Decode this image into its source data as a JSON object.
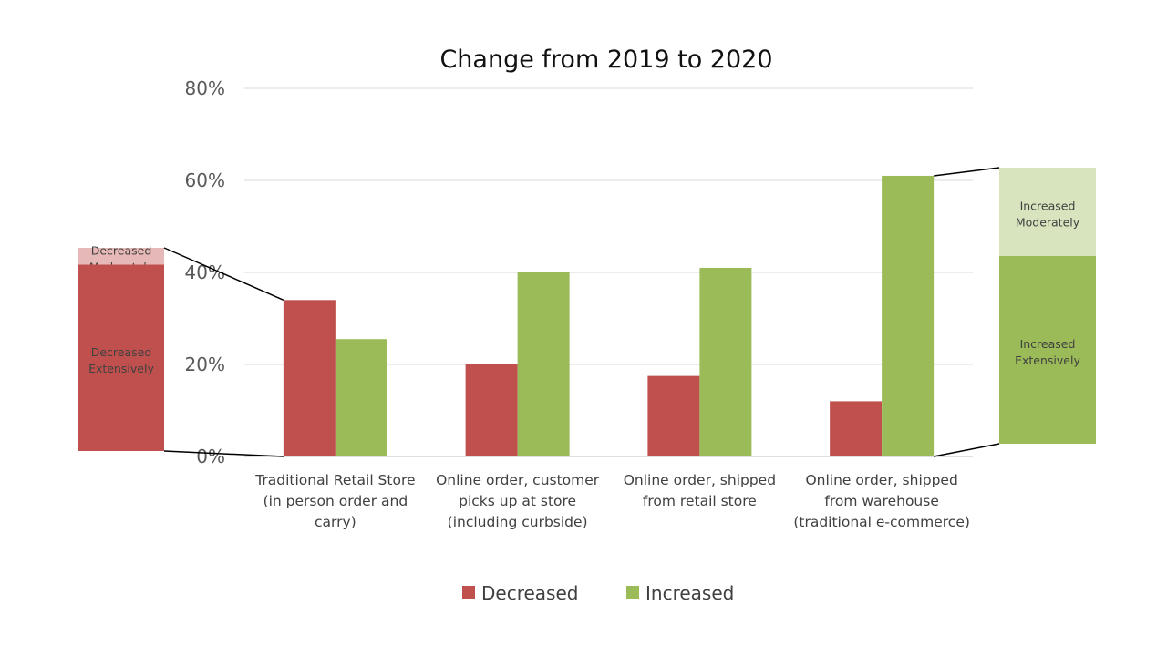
{
  "chart_data": {
    "type": "bar",
    "title": "Change from 2019 to 2020",
    "xlabel": "",
    "ylabel": "",
    "ylim": [
      0,
      80
    ],
    "yticks": [
      "0%",
      "20%",
      "40%",
      "60%",
      "80%"
    ],
    "grid": true,
    "legend_position": "bottom",
    "categories": [
      [
        "Traditional Retail Store",
        "(in person order and",
        "carry)"
      ],
      [
        "Online order, customer",
        "picks up at store",
        "(including curbside)"
      ],
      [
        "Online order, shipped",
        "from retail store"
      ],
      [
        "Online order, shipped",
        "from warehouse",
        "(traditional e-commerce)"
      ]
    ],
    "series": [
      {
        "name": "Decreased",
        "color": "#c0504d",
        "values": [
          34,
          20,
          17.5,
          12
        ]
      },
      {
        "name": "Increased",
        "color": "#9bbb59",
        "values": [
          25.5,
          40,
          41,
          61
        ]
      }
    ],
    "callouts": [
      {
        "side": "left",
        "linked_series": "Decreased",
        "linked_category_index": 0,
        "segments": [
          {
            "label": [
              "Decreased",
              "Moderately"
            ],
            "color": "#e6b8b7",
            "share": 0.083
          },
          {
            "label": [
              "Decreased",
              "Extensively"
            ],
            "color": "#c0504d",
            "share": 0.917
          }
        ]
      },
      {
        "side": "right",
        "linked_series": "Increased",
        "linked_category_index": 3,
        "segments": [
          {
            "label": [
              "Increased",
              "Moderately"
            ],
            "color": "#d7e4bd",
            "share": 0.32
          },
          {
            "label": [
              "Increased",
              "Extensively"
            ],
            "color": "#9bbb59",
            "share": 0.68
          }
        ]
      }
    ]
  }
}
